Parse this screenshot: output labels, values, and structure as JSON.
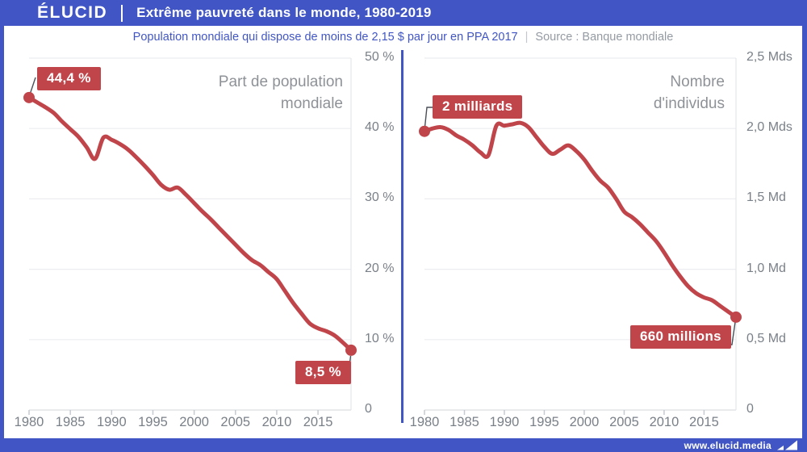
{
  "header": {
    "logo": "ÉLUCID",
    "title": "Extrême pauvreté dans le monde, 1980-2019",
    "subtitle": "Population mondiale qui dispose de moins de 2,15 $ par jour en PPA 2017",
    "separator": "|",
    "source": "Source : Banque mondiale"
  },
  "footer": {
    "url": "www.elucid.media"
  },
  "colors": {
    "brand_blue": "#4156c4",
    "accent_red": "#c0454b",
    "chart_title_gray": "#8e9297",
    "axis_label_gray": "#7a8088",
    "gridline_gray": "#ebedf0"
  },
  "chart_data": [
    {
      "type": "line",
      "title": "Part de population mondiale",
      "start_label": "44,4 %",
      "end_label": "8,5 %",
      "line_color": "#c0454b",
      "ylim": [
        0,
        50
      ],
      "x": [
        1980,
        1981,
        1982,
        1983,
        1984,
        1985,
        1986,
        1987,
        1988,
        1989,
        1990,
        1991,
        1992,
        1993,
        1994,
        1995,
        1996,
        1997,
        1998,
        1999,
        2000,
        2001,
        2002,
        2003,
        2004,
        2005,
        2006,
        2007,
        2008,
        2009,
        2010,
        2011,
        2012,
        2013,
        2014,
        2015,
        2016,
        2017,
        2018,
        2019
      ],
      "values": [
        44.4,
        43.7,
        43.0,
        42.2,
        41.0,
        39.9,
        38.8,
        37.3,
        35.7,
        38.7,
        38.4,
        37.8,
        37.0,
        35.9,
        34.7,
        33.4,
        32.0,
        31.3,
        31.6,
        30.6,
        29.4,
        28.2,
        27.1,
        25.9,
        24.7,
        23.5,
        22.3,
        21.3,
        20.6,
        19.6,
        18.6,
        16.9,
        15.2,
        13.7,
        12.3,
        11.6,
        11.2,
        10.6,
        9.6,
        8.5
      ],
      "y_ticks": [
        {
          "value": 0,
          "label": "0"
        },
        {
          "value": 10,
          "label": "10 %"
        },
        {
          "value": 20,
          "label": "20 %"
        },
        {
          "value": 30,
          "label": "30 %"
        },
        {
          "value": 40,
          "label": "40 %"
        },
        {
          "value": 50,
          "label": "50 %"
        }
      ],
      "x_ticks": [
        {
          "value": 1980,
          "label": "1980"
        },
        {
          "value": 1985,
          "label": "1985"
        },
        {
          "value": 1990,
          "label": "1990"
        },
        {
          "value": 1995,
          "label": "1995"
        },
        {
          "value": 2000,
          "label": "2000"
        },
        {
          "value": 2005,
          "label": "2005"
        },
        {
          "value": 2010,
          "label": "2010"
        },
        {
          "value": 2015,
          "label": "2015"
        }
      ]
    },
    {
      "type": "line",
      "title": "Nombre d'individus",
      "start_label": "2 milliards",
      "end_label": "660 millions",
      "line_color": "#c0454b",
      "ylim": [
        0,
        2.5
      ],
      "x": [
        1980,
        1981,
        1982,
        1983,
        1984,
        1985,
        1986,
        1987,
        1988,
        1989,
        1990,
        1991,
        1992,
        1993,
        1994,
        1995,
        1996,
        1997,
        1998,
        1999,
        2000,
        2001,
        2002,
        2003,
        2004,
        2005,
        2006,
        2007,
        2008,
        2009,
        2010,
        2011,
        2012,
        2013,
        2014,
        2015,
        2016,
        2017,
        2018,
        2019
      ],
      "values": [
        1.98,
        2.0,
        2.01,
        1.99,
        1.95,
        1.92,
        1.88,
        1.83,
        1.81,
        2.02,
        2.02,
        2.03,
        2.04,
        2.01,
        1.94,
        1.87,
        1.82,
        1.85,
        1.88,
        1.84,
        1.78,
        1.7,
        1.63,
        1.58,
        1.5,
        1.41,
        1.37,
        1.32,
        1.26,
        1.2,
        1.12,
        1.03,
        0.95,
        0.88,
        0.83,
        0.8,
        0.78,
        0.74,
        0.7,
        0.66
      ],
      "y_ticks": [
        {
          "value": 0,
          "label": "0"
        },
        {
          "value": 0.5,
          "label": "0,5 Md"
        },
        {
          "value": 1.0,
          "label": "1,0 Md"
        },
        {
          "value": 1.5,
          "label": "1,5 Md"
        },
        {
          "value": 2.0,
          "label": "2,0 Mds"
        },
        {
          "value": 2.5,
          "label": "2,5 Mds"
        }
      ],
      "x_ticks": [
        {
          "value": 1980,
          "label": "1980"
        },
        {
          "value": 1985,
          "label": "1985"
        },
        {
          "value": 1990,
          "label": "1990"
        },
        {
          "value": 1995,
          "label": "1995"
        },
        {
          "value": 2000,
          "label": "2000"
        },
        {
          "value": 2005,
          "label": "2005"
        },
        {
          "value": 2010,
          "label": "2010"
        },
        {
          "value": 2015,
          "label": "2015"
        }
      ]
    }
  ]
}
